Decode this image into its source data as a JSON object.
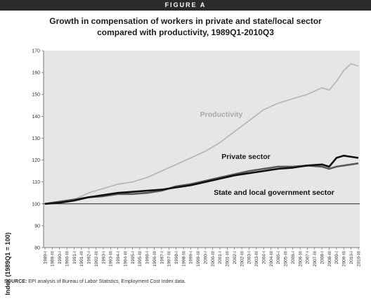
{
  "header": {
    "label": "FIGURE A"
  },
  "title_line1": "Growth in compensation of workers in private and state/local sector",
  "title_line2": "compared with productivity, 1989Q1-2010Q3",
  "source": {
    "prefix": "SOURCE:",
    "text": "EPI analysis of Bureau of Labor Statistics, Employment Cost Index data."
  },
  "chart_data": {
    "type": "line",
    "title": "Growth in compensation of workers in private and state/local sector compared with productivity, 1989Q1-2010Q3",
    "xlabel": "",
    "ylabel": "Index (1989Q1 = 100)",
    "ylim": [
      80,
      170
    ],
    "yticks": [
      80,
      90,
      100,
      110,
      120,
      130,
      140,
      150,
      160,
      170
    ],
    "xticks": [
      "1989-I",
      "1989-III",
      "1990-I",
      "1990-III",
      "1991-I",
      "1991-III",
      "1992-I",
      "1992-III",
      "1993-I",
      "1993-III",
      "1994-I",
      "1994-III",
      "1995-I",
      "1995-III",
      "1996-I",
      "1996-III",
      "1997-I",
      "1997-III",
      "1998-I",
      "1998-III",
      "1999-I",
      "1999-III",
      "2000-I",
      "2000-III",
      "2001-I",
      "2001-III",
      "2002-I",
      "2002-III",
      "2003-I",
      "2003-III",
      "2004-I",
      "2004-III",
      "2005-I",
      "2005-III",
      "2006-I",
      "2006-III",
      "2007-I",
      "2007-III",
      "2008-I",
      "2008-III",
      "2009-I",
      "2009-III",
      "2010-I",
      "2010-III"
    ],
    "grid": false,
    "reference_line": 100,
    "series": [
      {
        "name": "Productivity",
        "color": "#b8b8b8",
        "points": [
          [
            1989.0,
            100
          ],
          [
            1990.0,
            101
          ],
          [
            1991.0,
            102
          ],
          [
            1992.0,
            105
          ],
          [
            1993.0,
            107
          ],
          [
            1994.0,
            109
          ],
          [
            1995.0,
            110
          ],
          [
            1996.0,
            112
          ],
          [
            1997.0,
            115
          ],
          [
            1998.0,
            118
          ],
          [
            1999.0,
            121
          ],
          [
            2000.0,
            124
          ],
          [
            2001.0,
            128
          ],
          [
            2002.0,
            133
          ],
          [
            2003.0,
            138
          ],
          [
            2004.0,
            143
          ],
          [
            2005.0,
            146
          ],
          [
            2006.0,
            148
          ],
          [
            2007.0,
            150
          ],
          [
            2008.0,
            153
          ],
          [
            2008.5,
            152
          ],
          [
            2009.0,
            156
          ],
          [
            2009.5,
            161
          ],
          [
            2010.0,
            164
          ],
          [
            2010.5,
            163
          ]
        ]
      },
      {
        "name": "Private sector",
        "color": "#5a5a5a",
        "points": [
          [
            1989.0,
            100
          ],
          [
            1990.0,
            101
          ],
          [
            1991.0,
            102
          ],
          [
            1992.0,
            103
          ],
          [
            1993.0,
            103.5
          ],
          [
            1994.0,
            104.5
          ],
          [
            1995.0,
            104.5
          ],
          [
            1996.0,
            105
          ],
          [
            1997.0,
            106
          ],
          [
            1998.0,
            108
          ],
          [
            1999.0,
            109
          ],
          [
            2000.0,
            110.5
          ],
          [
            2001.0,
            112
          ],
          [
            2002.0,
            113.5
          ],
          [
            2003.0,
            115
          ],
          [
            2004.0,
            116
          ],
          [
            2005.0,
            117
          ],
          [
            2006.0,
            117
          ],
          [
            2007.0,
            117.5
          ],
          [
            2008.0,
            117
          ],
          [
            2008.5,
            116
          ],
          [
            2009.0,
            117
          ],
          [
            2009.5,
            117.5
          ],
          [
            2010.0,
            118
          ],
          [
            2010.5,
            118.5
          ]
        ]
      },
      {
        "name": "State and local government sector",
        "color": "#111111",
        "points": [
          [
            1989.0,
            100
          ],
          [
            1990.0,
            100.5
          ],
          [
            1991.0,
            101.5
          ],
          [
            1992.0,
            103
          ],
          [
            1993.0,
            104
          ],
          [
            1994.0,
            105
          ],
          [
            1995.0,
            105.5
          ],
          [
            1996.0,
            106
          ],
          [
            1997.0,
            106.5
          ],
          [
            1998.0,
            107.5
          ],
          [
            1999.0,
            108.5
          ],
          [
            2000.0,
            110
          ],
          [
            2001.0,
            111.5
          ],
          [
            2002.0,
            113
          ],
          [
            2003.0,
            114
          ],
          [
            2004.0,
            115
          ],
          [
            2005.0,
            116
          ],
          [
            2006.0,
            116.5
          ],
          [
            2007.0,
            117.5
          ],
          [
            2008.0,
            118
          ],
          [
            2008.5,
            117
          ],
          [
            2009.0,
            121
          ],
          [
            2009.5,
            122
          ],
          [
            2010.0,
            121.5
          ],
          [
            2010.5,
            121
          ]
        ]
      }
    ],
    "annotations": [
      {
        "text": "Productivity",
        "series": 0
      },
      {
        "text": "Private sector",
        "series": 1
      },
      {
        "text": "State and local government sector",
        "series": 2
      }
    ]
  }
}
